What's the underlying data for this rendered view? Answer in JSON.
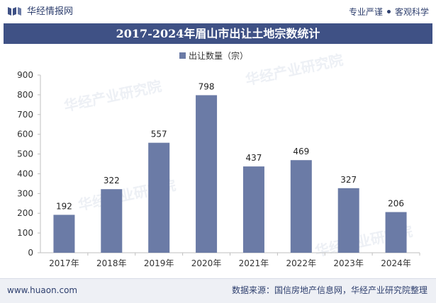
{
  "header": {
    "brand": "华经情报网",
    "tagline_left": "专业严谨",
    "tagline_right": "客观科学"
  },
  "footer": {
    "website": "www.huaon.com",
    "source": "数据来源：国信房地产信息网，华经产业研究院整理"
  },
  "watermark": "华经产业研究院",
  "colors": {
    "accent": "#3f5185",
    "bar": "#6b7ba6"
  },
  "chart_data": {
    "type": "bar",
    "title": "2017-2024年眉山市出让土地宗数统计",
    "categories": [
      "2017年",
      "2018年",
      "2019年",
      "2020年",
      "2021年",
      "2022年",
      "2023年",
      "2024年"
    ],
    "series": [
      {
        "name": "出让数量（宗）",
        "values": [
          192,
          322,
          557,
          798,
          437,
          469,
          327,
          206
        ]
      }
    ],
    "ylim": [
      0,
      900
    ],
    "yticks": [
      0,
      100,
      200,
      300,
      400,
      500,
      600,
      700,
      800,
      900
    ],
    "legend_position": "top-center",
    "grid": false
  }
}
